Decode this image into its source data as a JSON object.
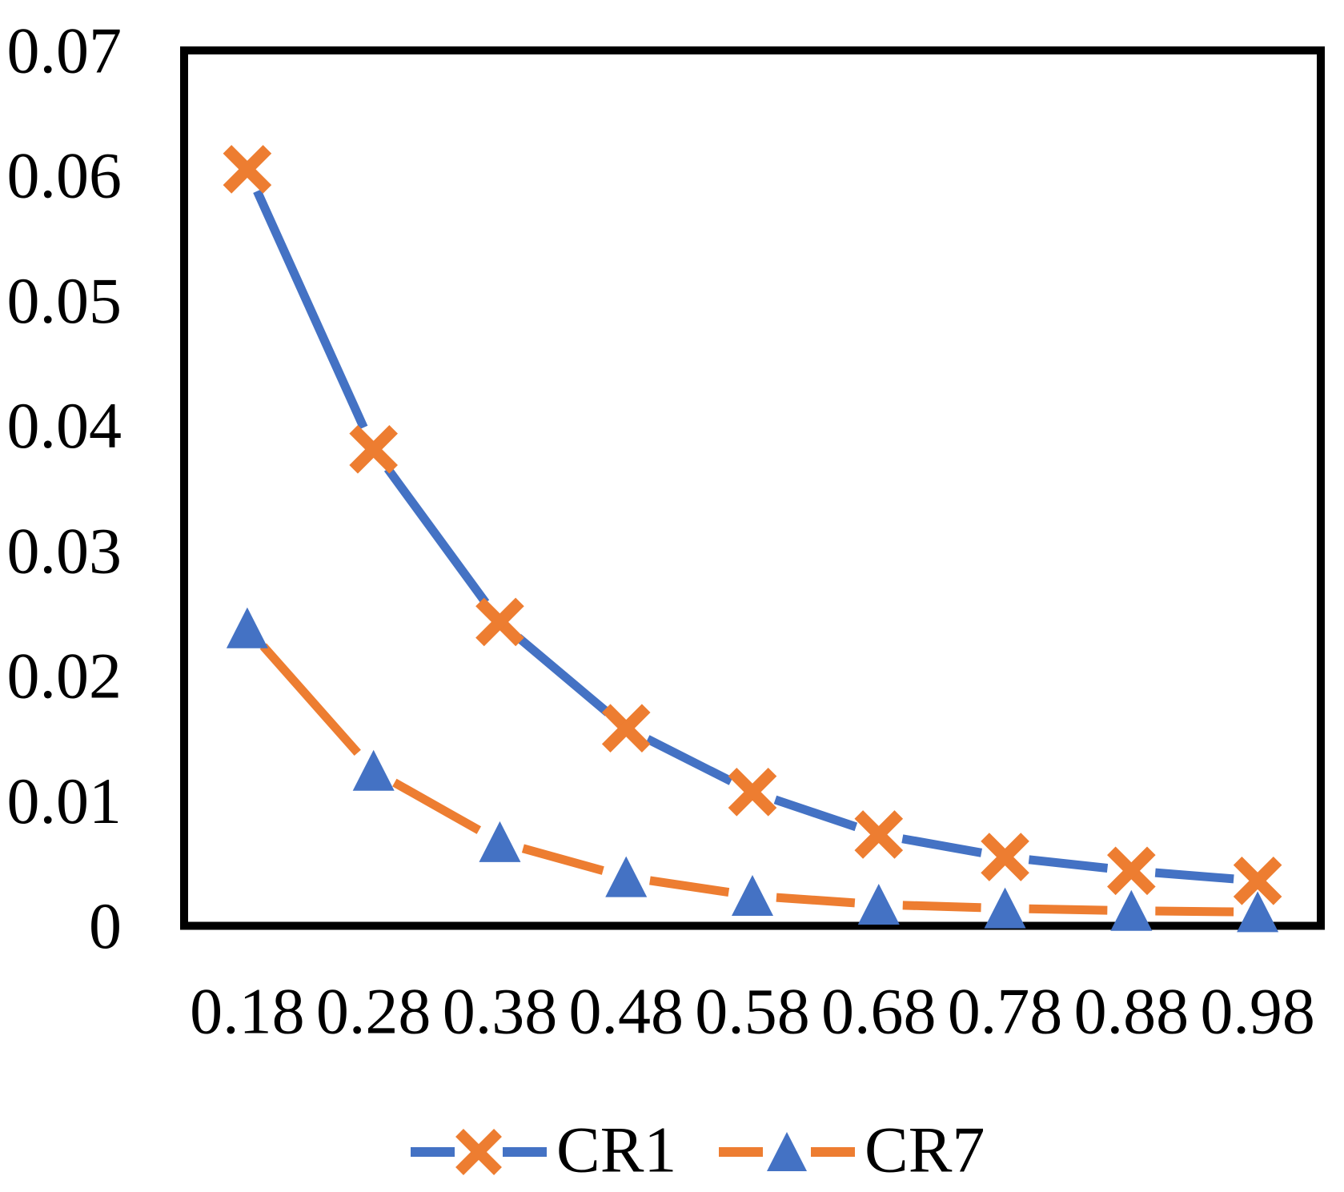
{
  "figure": {
    "background": "#ffffff",
    "text_color": "#000000",
    "plot_border_color": "#000000"
  },
  "chart_data": {
    "type": "line",
    "title": "",
    "xlabel": "",
    "ylabel": "",
    "grid": false,
    "plot_border": true,
    "categories": [
      "0.18",
      "0.28",
      "0.38",
      "0.48",
      "0.58",
      "0.68",
      "0.78",
      "0.88",
      "0.98"
    ],
    "series": [
      {
        "name": "CR1",
        "line_color": "#4472C4",
        "marker": "x",
        "marker_color": "#ED7D31",
        "values": [
          0.0605,
          0.0381,
          0.0243,
          0.0158,
          0.0107,
          0.0073,
          0.0055,
          0.0044,
          0.0036
        ]
      },
      {
        "name": "CR7",
        "line_color": "#ED7D31",
        "marker": "triangle",
        "marker_color": "#4472C4",
        "values": [
          0.0238,
          0.0124,
          0.0067,
          0.0039,
          0.0024,
          0.0017,
          0.0014,
          0.0012,
          0.0011
        ]
      }
    ],
    "x_axis": {
      "tick_labels": [
        "0.18",
        "0.28",
        "0.38",
        "0.48",
        "0.58",
        "0.68",
        "0.78",
        "0.88",
        "0.98"
      ]
    },
    "y_axis": {
      "min": 0,
      "max": 0.07,
      "tick_step": 0.01,
      "tick_labels": [
        "0",
        "0.01",
        "0.02",
        "0.03",
        "0.04",
        "0.05",
        "0.06",
        "0.07"
      ]
    },
    "legend": {
      "position": "bottom-center",
      "entries": [
        {
          "label": "CR1",
          "series": "CR1"
        },
        {
          "label": "CR7",
          "series": "CR7"
        }
      ]
    }
  }
}
